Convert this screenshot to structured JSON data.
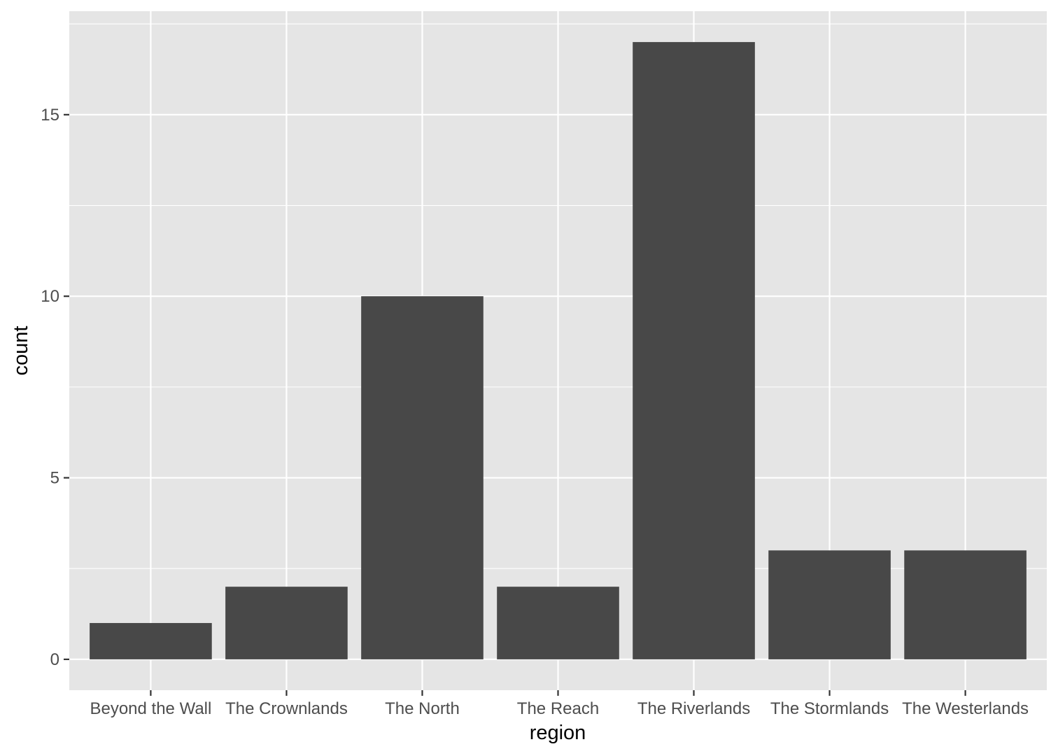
{
  "chart_data": {
    "type": "bar",
    "title": "",
    "xlabel": "region",
    "ylabel": "count",
    "categories": [
      "Beyond the Wall",
      "The Crownlands",
      "The North",
      "The Reach",
      "The Riverlands",
      "The Stormlands",
      "The Westerlands"
    ],
    "values": [
      1,
      2,
      10,
      2,
      17,
      3,
      3
    ],
    "ylim": [
      -0.85,
      17.85
    ],
    "y_ticks": [
      0,
      5,
      10,
      15
    ],
    "y_tick_labels": [
      "0",
      "5",
      "10",
      "15"
    ],
    "grid": true,
    "legend": "none",
    "colors": {
      "panel": "#e5e5e5",
      "grid": "#ffffff",
      "bar": "#484848",
      "tick": "#333333"
    }
  }
}
